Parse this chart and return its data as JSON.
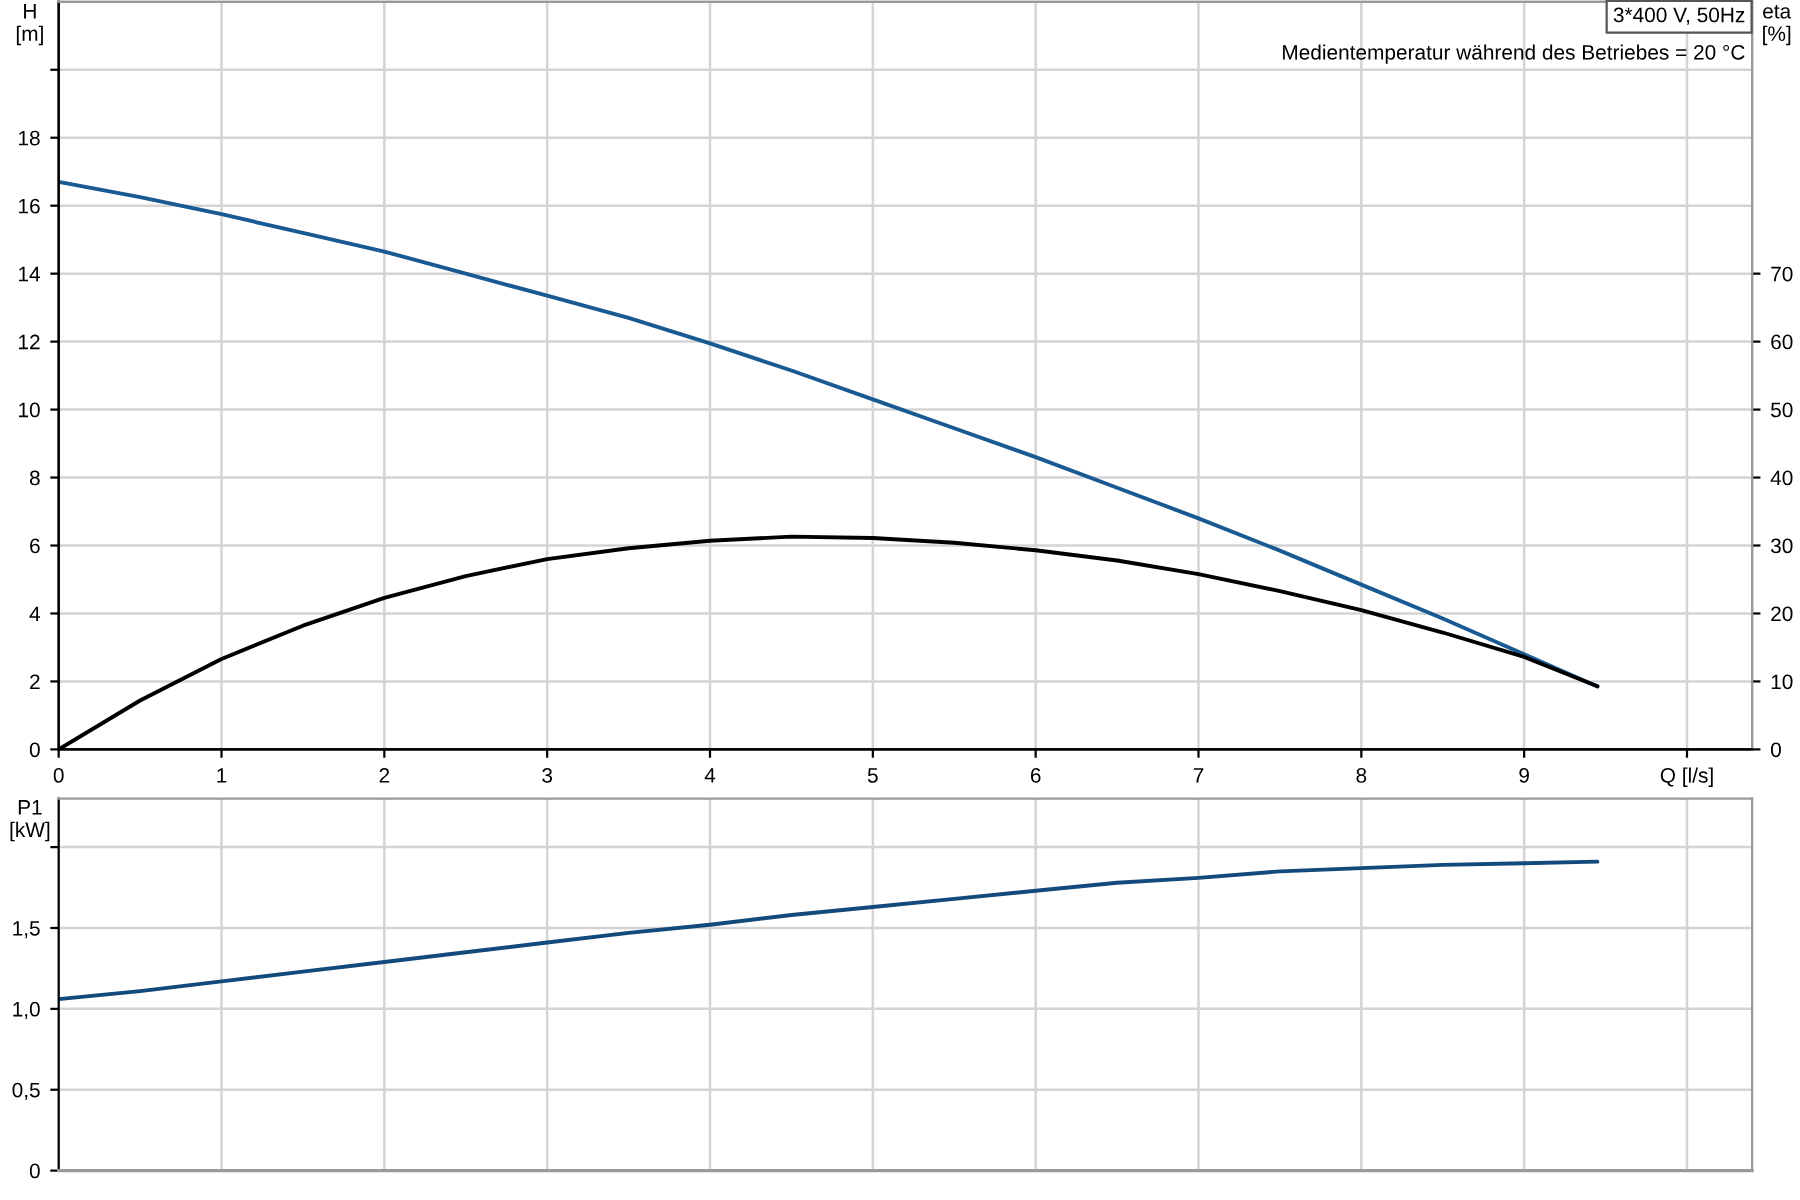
{
  "chart_data": [
    {
      "type": "line",
      "title": "3*400 V, 50Hz",
      "annotations": [
        "Medientemperatur während des Betriebes = 20 °C"
      ],
      "ylabel": "H\n[m]",
      "y2label": "eta\n[%]",
      "x": [
        0,
        0.5,
        1,
        1.5,
        2,
        2.5,
        3,
        3.5,
        4,
        4.5,
        5,
        5.5,
        6,
        6.5,
        7,
        7.5,
        8,
        8.5,
        9,
        9.45
      ],
      "series": [
        {
          "color": "#1a5a92",
          "values": [
            16.7,
            16.25,
            15.75,
            15.2,
            14.65,
            14.0,
            13.35,
            12.7,
            11.95,
            11.15,
            10.3,
            9.45,
            8.6,
            7.7,
            6.8,
            5.85,
            4.85,
            3.85,
            2.8,
            1.85
          ]
        },
        {
          "color": "#000000",
          "axis": "y2",
          "values": [
            0,
            7.2,
            13.3,
            18.2,
            22.3,
            25.5,
            28.0,
            29.6,
            30.7,
            31.3,
            31.1,
            30.4,
            29.3,
            27.8,
            25.8,
            23.3,
            20.5,
            17.2,
            13.6,
            9.3
          ]
        }
      ],
      "xlim": [
        0,
        10.4
      ],
      "xticks": [
        0,
        1,
        2,
        3,
        4,
        5,
        6,
        7,
        8,
        9,
        {
          "value": 10,
          "label": "Q [l/s]"
        }
      ],
      "ylim": [
        0,
        22
      ],
      "yticks": [
        0,
        2,
        4,
        6,
        8,
        10,
        12,
        14,
        16,
        18,
        {
          "value": 20,
          "label": null
        }
      ],
      "y2lim": [
        0,
        110
      ],
      "y2ticks": [
        0,
        10,
        20,
        30,
        40,
        50,
        60,
        70
      ],
      "grid": true,
      "line_style": "solid"
    },
    {
      "type": "line",
      "ylabel": "P1\n[kW]",
      "x": [
        0,
        0.5,
        1,
        1.5,
        2,
        2.5,
        3,
        3.5,
        4,
        4.5,
        5,
        5.5,
        6,
        6.5,
        7,
        7.5,
        8,
        8.5,
        9,
        9.45
      ],
      "series": [
        {
          "color": "#134a7c",
          "values": [
            1.06,
            1.11,
            1.17,
            1.23,
            1.29,
            1.35,
            1.41,
            1.47,
            1.52,
            1.58,
            1.63,
            1.68,
            1.73,
            1.78,
            1.81,
            1.85,
            1.87,
            1.89,
            1.9,
            1.91
          ]
        }
      ],
      "xlim": [
        0,
        10.4
      ],
      "xticks": [
        0,
        1,
        2,
        3,
        4,
        5,
        6,
        7,
        8,
        9,
        10
      ],
      "ylim": [
        0,
        2.3
      ],
      "yticks": [
        0,
        {
          "value": 0.5,
          "label": "0,5"
        },
        {
          "value": 1.0,
          "label": "1,0"
        },
        {
          "value": 1.5,
          "label": "1,5"
        },
        {
          "value": 2.0,
          "label": null
        }
      ],
      "grid": true,
      "tick_labels": "y",
      "line_style": "solid"
    }
  ]
}
